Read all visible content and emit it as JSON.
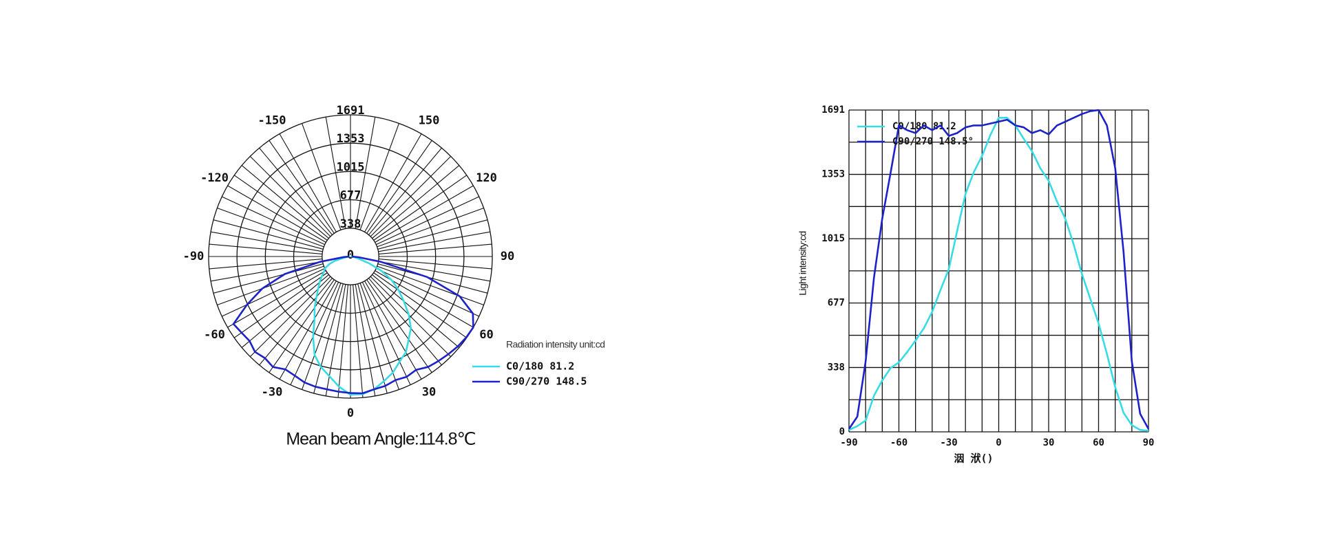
{
  "chart_data": [
    {
      "type": "polar",
      "title": "Mean beam Angle:114.8℃",
      "legend_title": "Radiation intensity unit:cd",
      "x": [
        -90,
        -85,
        -80,
        -75,
        -70,
        -65,
        -60,
        -55,
        -50,
        -45,
        -40,
        -35,
        -30,
        -25,
        -20,
        -15,
        -10,
        -5,
        0,
        5,
        10,
        15,
        20,
        25,
        30,
        35,
        40,
        45,
        50,
        55,
        60,
        65,
        70,
        75,
        80,
        85,
        90
      ],
      "series": [
        {
          "name": "C0/180 81.2",
          "color": "#36dbe6",
          "values": [
            10,
            30,
            60,
            190,
            270,
            335,
            365,
            420,
            480,
            545,
            630,
            745,
            855,
            1055,
            1250,
            1365,
            1450,
            1560,
            1650,
            1650,
            1610,
            1540,
            1475,
            1385,
            1320,
            1210,
            1120,
            985,
            830,
            700,
            570,
            410,
            235,
            100,
            35,
            10,
            5
          ]
        },
        {
          "name": "C90/270 148.5",
          "color": "#1c22c8",
          "values": [
            15,
            80,
            370,
            810,
            1120,
            1360,
            1610,
            1585,
            1570,
            1610,
            1585,
            1610,
            1555,
            1570,
            1600,
            1610,
            1610,
            1620,
            1630,
            1640,
            1610,
            1600,
            1570,
            1585,
            1563,
            1610,
            1630,
            1650,
            1670,
            1685,
            1691,
            1610,
            1385,
            945,
            370,
            95,
            15
          ]
        }
      ],
      "rlim": [
        0,
        1691
      ],
      "rticks": [
        0,
        338,
        677,
        1015,
        1353,
        1691
      ],
      "angle_ticks": [
        -150,
        -120,
        -90,
        -60,
        -30,
        0,
        30,
        60,
        90,
        120,
        150
      ],
      "grid": true
    },
    {
      "type": "line",
      "xlabel": "洇 洑()",
      "ylabel": "Light intensity:cd",
      "x": [
        -90,
        -85,
        -80,
        -75,
        -70,
        -65,
        -60,
        -55,
        -50,
        -45,
        -40,
        -35,
        -30,
        -25,
        -20,
        -15,
        -10,
        -5,
        0,
        5,
        10,
        15,
        20,
        25,
        30,
        35,
        40,
        45,
        50,
        55,
        60,
        65,
        70,
        75,
        80,
        85,
        90
      ],
      "series": [
        {
          "name": "C0/180 81.2",
          "color": "#36dbe6",
          "values": [
            10,
            30,
            60,
            190,
            270,
            335,
            365,
            420,
            480,
            545,
            630,
            745,
            855,
            1055,
            1250,
            1365,
            1450,
            1560,
            1650,
            1650,
            1610,
            1540,
            1475,
            1385,
            1320,
            1210,
            1120,
            985,
            830,
            700,
            570,
            410,
            235,
            100,
            35,
            10,
            5
          ]
        },
        {
          "name": "C90/270 148.5°",
          "color": "#1c22c8",
          "values": [
            15,
            80,
            370,
            810,
            1120,
            1360,
            1610,
            1585,
            1570,
            1610,
            1585,
            1610,
            1555,
            1570,
            1600,
            1610,
            1610,
            1620,
            1630,
            1640,
            1610,
            1600,
            1570,
            1585,
            1563,
            1610,
            1630,
            1650,
            1670,
            1685,
            1691,
            1610,
            1385,
            945,
            370,
            95,
            15
          ]
        }
      ],
      "xlim": [
        -90,
        90
      ],
      "xticks": [
        -90,
        -60,
        -30,
        0,
        30,
        60,
        90
      ],
      "ylim": [
        0,
        1691
      ],
      "yticks": [
        0,
        338,
        677,
        1015,
        1353,
        1691
      ],
      "grid": true,
      "legend": "upper left"
    }
  ]
}
